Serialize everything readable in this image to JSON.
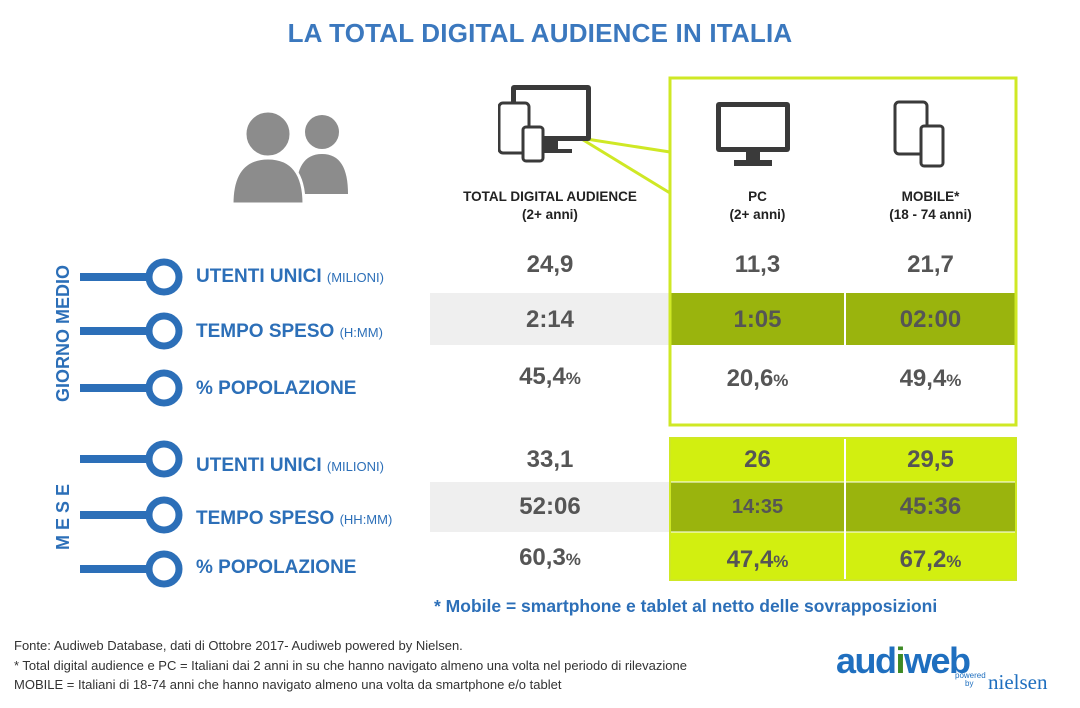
{
  "title": "LA TOTAL DIGITAL AUDIENCE IN ITALIA",
  "colors": {
    "title": "#3b78be",
    "label_blue": "#2c6fb8",
    "highlight_border": "#c8e61a",
    "olive": "#9ab40d",
    "lime": "#d2ef10",
    "gray_band": "#efefef"
  },
  "icons": [
    "people-icon",
    "devices-icon",
    "monitor-icon",
    "mobile-devices-icon"
  ],
  "columns": [
    {
      "name": "TOTAL DIGITAL AUDIENCE",
      "sub": "(2+ anni)"
    },
    {
      "name": "PC",
      "sub": "(2+ anni)"
    },
    {
      "name": "MOBILE*",
      "sub": "(18 - 74 anni)"
    }
  ],
  "groups": [
    {
      "label": "GIORNO MEDIO",
      "rows": [
        {
          "label": "UTENTI UNICI",
          "unit": "(MILIONI)",
          "values": [
            "24,9",
            "11,3",
            "21,7"
          ],
          "suffix": [
            "",
            "",
            ""
          ]
        },
        {
          "label": "TEMPO SPESO",
          "unit": "(H:MM)",
          "values": [
            "2:14",
            "1:05",
            "02:00"
          ],
          "suffix": [
            "",
            "",
            ""
          ]
        },
        {
          "label": "% POPOLAZIONE",
          "unit": "",
          "values": [
            "45,4",
            "20,6",
            "49,4"
          ],
          "suffix": [
            "%",
            "%",
            "%"
          ]
        }
      ]
    },
    {
      "label": "M E S E",
      "rows": [
        {
          "label": "UTENTI UNICI",
          "unit": "(MILIONI)",
          "values": [
            "33,1",
            "26",
            "29,5"
          ],
          "suffix": [
            "",
            "",
            ""
          ]
        },
        {
          "label": "TEMPO SPESO",
          "unit": "(HH:MM)",
          "values": [
            "52:06",
            "14:35",
            "45:36"
          ],
          "suffix": [
            "",
            "",
            ""
          ]
        },
        {
          "label": "% POPOLAZIONE",
          "unit": "",
          "values": [
            "60,3",
            "47,4",
            "67,2"
          ],
          "suffix": [
            "%",
            "%",
            "%"
          ]
        }
      ]
    }
  ],
  "chart_data": {
    "type": "table",
    "title": "LA TOTAL DIGITAL AUDIENCE IN ITALIA",
    "columns": [
      "TOTAL DIGITAL AUDIENCE (2+ anni)",
      "PC (2+ anni)",
      "MOBILE* (18 - 74 anni)"
    ],
    "rows": [
      {
        "group": "GIORNO MEDIO",
        "metric": "UTENTI UNICI (MILIONI)",
        "values": [
          24.9,
          11.3,
          21.7
        ]
      },
      {
        "group": "GIORNO MEDIO",
        "metric": "TEMPO SPESO (H:MM)",
        "values": [
          "2:14",
          "1:05",
          "02:00"
        ]
      },
      {
        "group": "GIORNO MEDIO",
        "metric": "% POPOLAZIONE",
        "values": [
          45.4,
          20.6,
          49.4
        ]
      },
      {
        "group": "M E S E",
        "metric": "UTENTI UNICI (MILIONI)",
        "values": [
          33.1,
          26,
          29.5
        ]
      },
      {
        "group": "M E S E",
        "metric": "TEMPO SPESO (HH:MM)",
        "values": [
          "52:06",
          "14:35",
          "45:36"
        ]
      },
      {
        "group": "M E S E",
        "metric": "% POPOLAZIONE",
        "values": [
          60.3,
          47.4,
          67.2
        ]
      }
    ]
  },
  "footnote_mobile": "* Mobile = smartphone e tablet al netto delle sovrapposizioni",
  "source_lines": [
    "Fonte: Audiweb Database, dati di Ottobre 2017- Audiweb powered by Nielsen.",
    "* Total digital audience e PC = Italiani dai 2 anni in su che hanno navigato almeno una volta nel periodo di rilevazione",
    "MOBILE = Italiani di 18-74 anni che hanno navigato almeno una volta da smartphone e/o tablet"
  ],
  "logo": {
    "part1": "aud",
    "part2": "i",
    "part3": "web",
    "powered": "powered",
    "by": "by",
    "nielsen": "nielsen"
  }
}
